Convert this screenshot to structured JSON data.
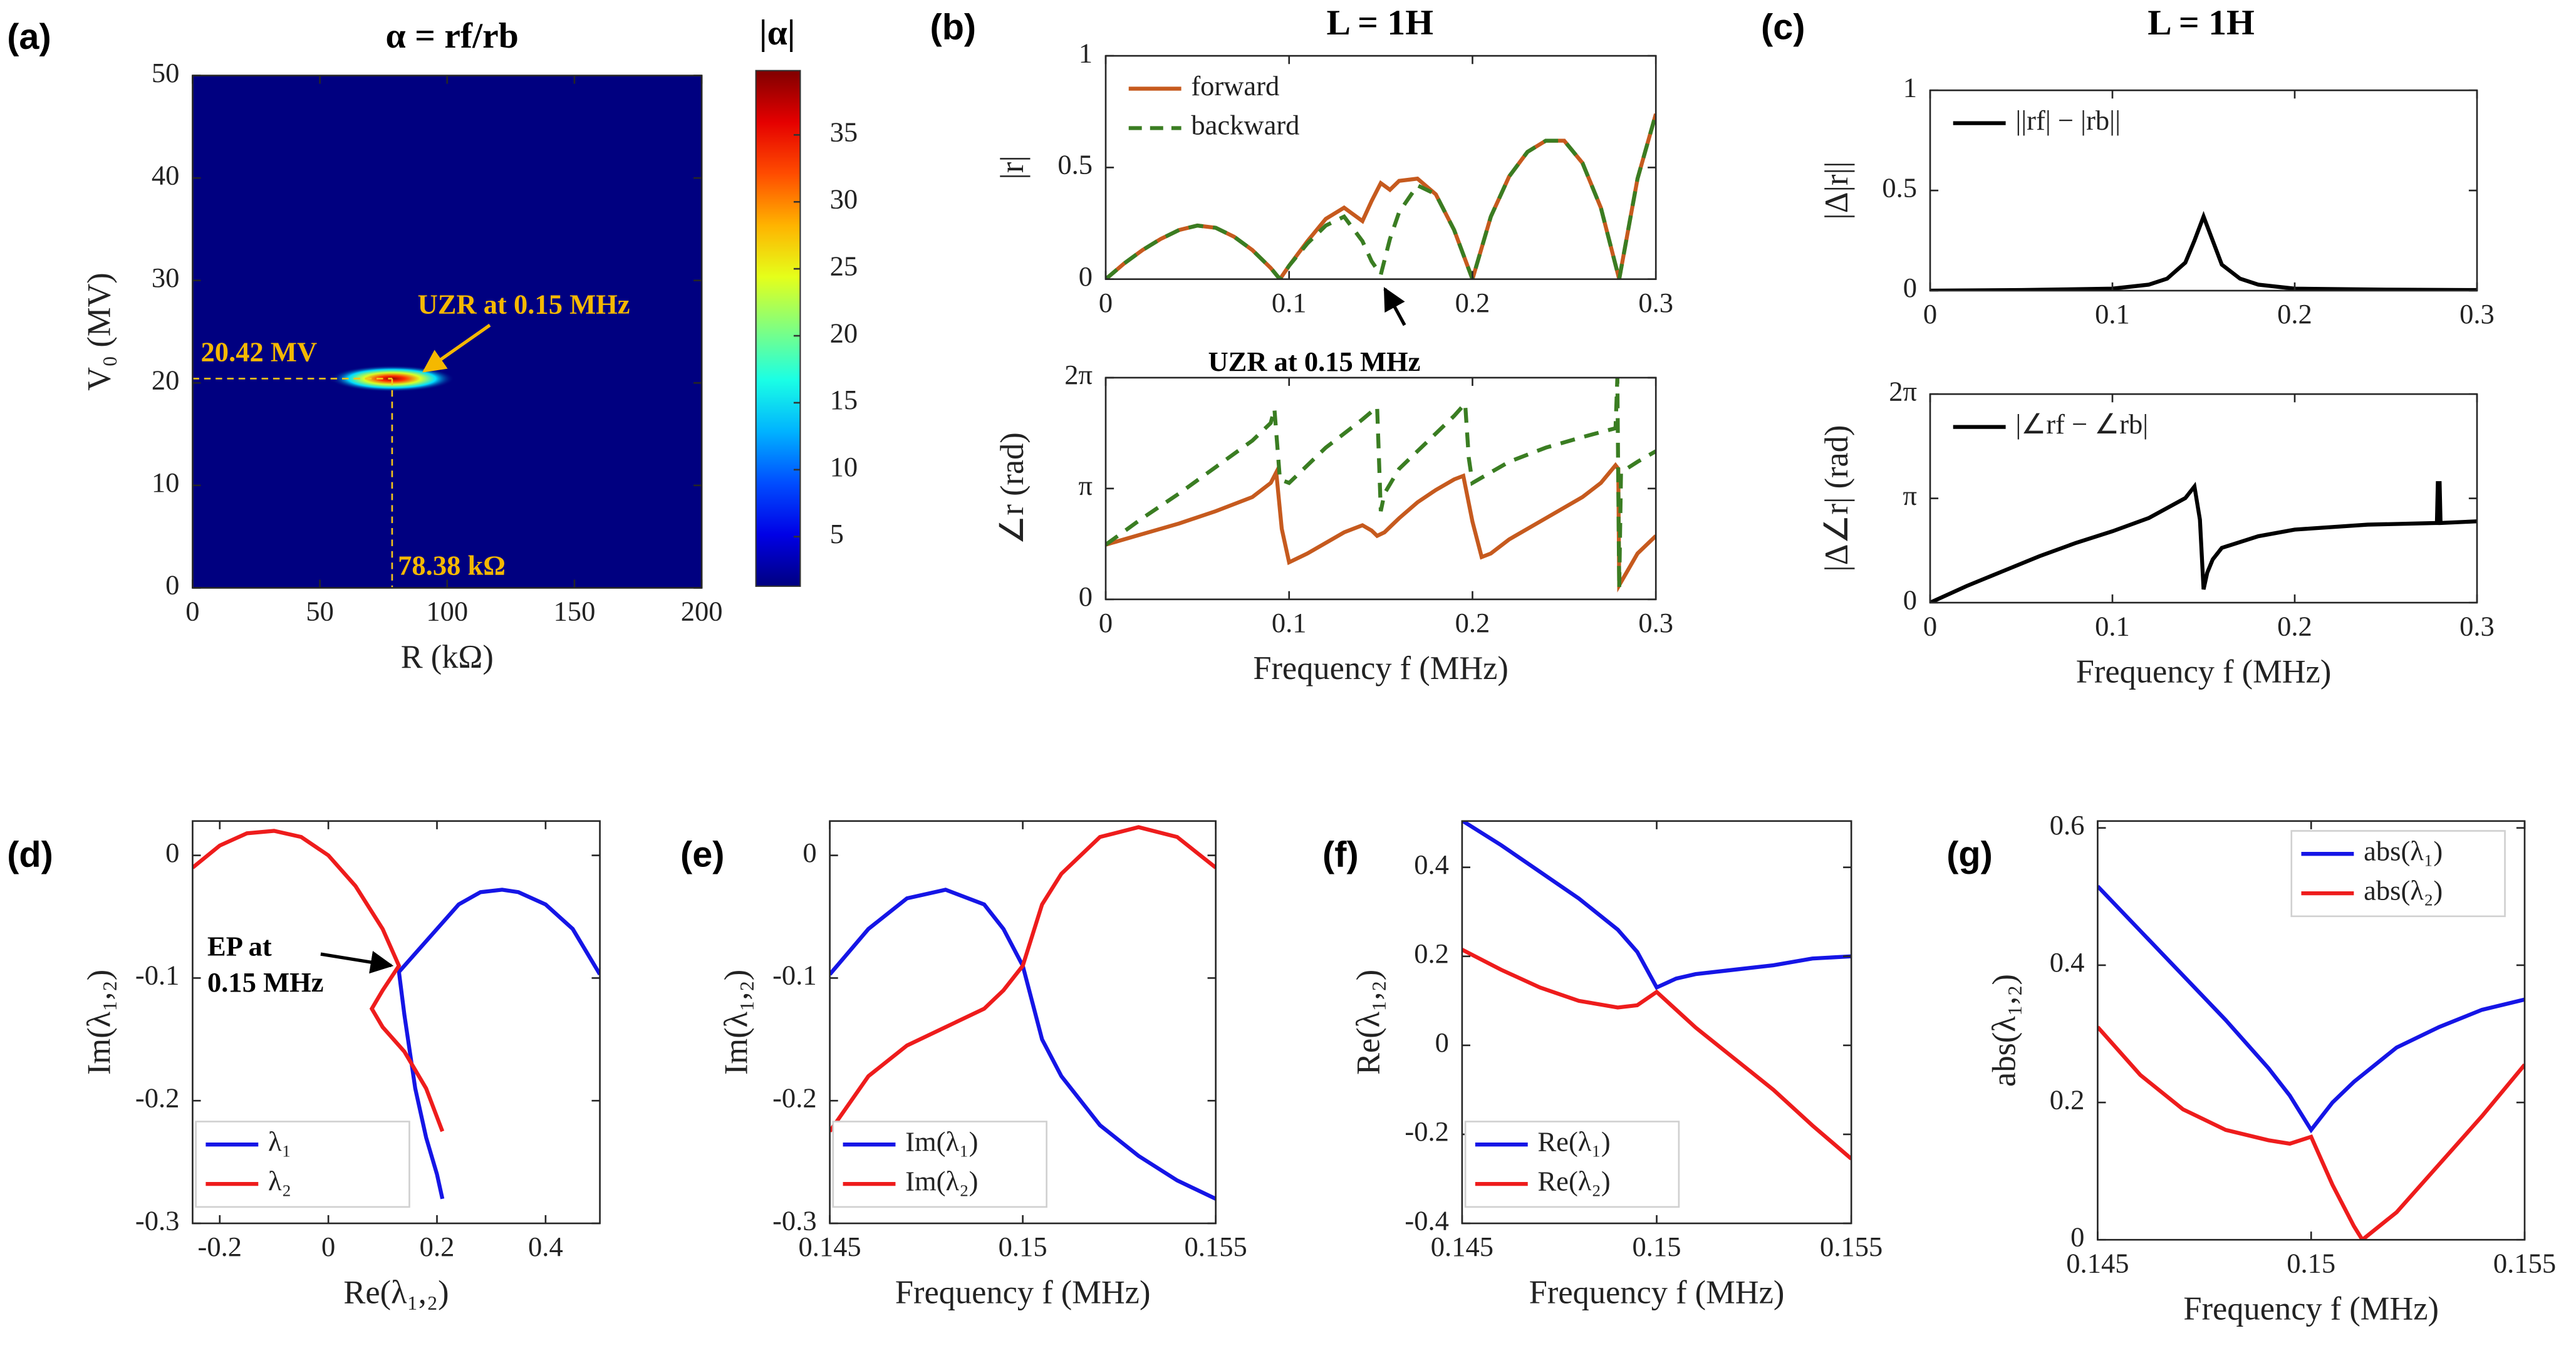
{
  "chart_data": [
    {
      "type": "heatmap",
      "panel_label": "(a)",
      "title": "α = rf/rb",
      "xlabel": "R (kΩ)",
      "ylabel": "V₀ (MV)",
      "xlim": [
        0,
        200
      ],
      "xticks": [
        0,
        50,
        100,
        150,
        200
      ],
      "ylim": [
        0,
        50
      ],
      "yticks": [
        0,
        10,
        20,
        30,
        40,
        50
      ],
      "colorbar_label": "|α|",
      "clim": [
        1.3,
        39.8
      ],
      "cticks": [
        5,
        10,
        15,
        20,
        25,
        30,
        35
      ],
      "hotspot": {
        "x": 78.38,
        "y": 20.42,
        "value": 39
      },
      "annotations": [
        "UZR at 0.15 MHz",
        "20.42 MV",
        "78.38 kΩ"
      ]
    },
    {
      "type": "line",
      "panel_label": "(b)",
      "title": "L = 1H",
      "ylabel": "|r|",
      "legend": "upper left",
      "xlim": [
        0,
        0.3
      ],
      "xticks": [
        0,
        0.1,
        0.2,
        0.3
      ],
      "ylim": [
        0,
        1
      ],
      "yticks": [
        0,
        0.5,
        1
      ],
      "annotations": [
        "UZR at 0.15 MHz"
      ],
      "series": [
        {
          "name": "forward",
          "color": "#c65a1e",
          "dash": false,
          "x": [
            0,
            0.01,
            0.02,
            0.03,
            0.04,
            0.05,
            0.06,
            0.07,
            0.08,
            0.09,
            0.095,
            0.1,
            0.11,
            0.12,
            0.13,
            0.14,
            0.145,
            0.15,
            0.155,
            0.16,
            0.17,
            0.18,
            0.19,
            0.2,
            0.21,
            0.22,
            0.23,
            0.24,
            0.25,
            0.26,
            0.27,
            0.28,
            0.29,
            0.3
          ],
          "values": [
            0,
            0.07,
            0.13,
            0.18,
            0.22,
            0.24,
            0.23,
            0.19,
            0.13,
            0.05,
            0,
            0.06,
            0.17,
            0.27,
            0.32,
            0.26,
            0.35,
            0.43,
            0.4,
            0.44,
            0.45,
            0.38,
            0.22,
            0,
            0.28,
            0.46,
            0.57,
            0.62,
            0.62,
            0.52,
            0.32,
            0,
            0.45,
            0.74
          ]
        },
        {
          "name": "backward",
          "color": "#3a7d22",
          "dash": true,
          "x": [
            0,
            0.01,
            0.02,
            0.03,
            0.04,
            0.05,
            0.06,
            0.07,
            0.08,
            0.09,
            0.095,
            0.1,
            0.11,
            0.12,
            0.13,
            0.14,
            0.145,
            0.15,
            0.155,
            0.16,
            0.17,
            0.18,
            0.19,
            0.2,
            0.21,
            0.22,
            0.23,
            0.24,
            0.25,
            0.26,
            0.27,
            0.28,
            0.29,
            0.3
          ],
          "values": [
            0,
            0.07,
            0.13,
            0.18,
            0.22,
            0.24,
            0.23,
            0.19,
            0.13,
            0.05,
            0,
            0.06,
            0.16,
            0.24,
            0.28,
            0.17,
            0.08,
            0.02,
            0.18,
            0.3,
            0.42,
            0.38,
            0.22,
            0,
            0.28,
            0.46,
            0.57,
            0.62,
            0.62,
            0.52,
            0.32,
            0,
            0.45,
            0.74
          ]
        }
      ]
    },
    {
      "type": "line",
      "ylabel": "∠r (rad)",
      "xlabel": "Frequency f (MHz)",
      "xlim": [
        0,
        0.3
      ],
      "xticks": [
        0,
        0.1,
        0.2,
        0.3
      ],
      "ylim": [
        0,
        6.28319
      ],
      "yticks": [
        0,
        {
          "value": 3.14159,
          "label": "π"
        },
        {
          "value": 6.28319,
          "label": "2π"
        }
      ],
      "series": [
        {
          "color": "#c65a1e",
          "dash": false,
          "x": [
            0,
            0.02,
            0.04,
            0.06,
            0.08,
            0.09,
            0.093,
            0.096,
            0.1,
            0.11,
            0.12,
            0.13,
            0.14,
            0.145,
            0.148,
            0.152,
            0.156,
            0.16,
            0.17,
            0.18,
            0.19,
            0.195,
            0.2,
            0.205,
            0.21,
            0.22,
            0.24,
            0.26,
            0.27,
            0.278,
            0.2795,
            0.28,
            0.29,
            0.3
          ],
          "values": [
            1.55,
            1.85,
            2.15,
            2.5,
            2.9,
            3.3,
            3.6,
            2.0,
            1.05,
            1.3,
            1.6,
            1.9,
            2.1,
            1.95,
            1.8,
            1.9,
            2.1,
            2.3,
            2.75,
            3.1,
            3.4,
            3.5,
            2.2,
            1.2,
            1.3,
            1.7,
            2.3,
            2.9,
            3.3,
            3.8,
            3.7,
            0.4,
            1.3,
            1.8
          ]
        },
        {
          "color": "#3a7d22",
          "dash": true,
          "x": [
            0,
            0.02,
            0.04,
            0.06,
            0.08,
            0.09,
            0.092,
            0.095,
            0.1,
            0.11,
            0.12,
            0.13,
            0.14,
            0.148,
            0.149,
            0.15,
            0.152,
            0.16,
            0.17,
            0.18,
            0.19,
            0.196,
            0.198,
            0.2,
            0.21,
            0.22,
            0.24,
            0.26,
            0.278,
            0.279,
            0.28,
            0.281,
            0.29,
            0.3
          ],
          "values": [
            1.55,
            2.3,
            3.0,
            3.75,
            4.5,
            5.0,
            5.4,
            3.4,
            3.3,
            3.8,
            4.3,
            4.7,
            5.1,
            5.45,
            4.0,
            2.5,
            3.0,
            3.7,
            4.2,
            4.7,
            5.2,
            5.55,
            4.0,
            3.3,
            3.6,
            3.9,
            4.3,
            4.6,
            4.85,
            6.28,
            0.3,
            3.6,
            3.9,
            4.2
          ]
        }
      ]
    },
    {
      "type": "line",
      "panel_label": "(c)",
      "title": "L = 1H",
      "ylabel": "|Δ|r||",
      "legend": "upper left",
      "xlim": [
        0,
        0.3
      ],
      "xticks": [
        0,
        0.1,
        0.2,
        0.3
      ],
      "ylim": [
        0,
        1
      ],
      "yticks": [
        0,
        0.5,
        1
      ],
      "series": [
        {
          "name": "||rf| − |rb||",
          "color": "#000000",
          "dash": false,
          "x": [
            0,
            0.05,
            0.1,
            0.12,
            0.13,
            0.14,
            0.145,
            0.15,
            0.155,
            0.16,
            0.17,
            0.18,
            0.2,
            0.25,
            0.3
          ],
          "values": [
            0,
            0.003,
            0.01,
            0.03,
            0.06,
            0.14,
            0.25,
            0.37,
            0.25,
            0.13,
            0.06,
            0.03,
            0.01,
            0.005,
            0.003
          ]
        }
      ]
    },
    {
      "type": "line",
      "ylabel": "|Δ∠r| (rad)",
      "xlabel": "Frequency f (MHz)",
      "legend": "upper left",
      "xlim": [
        0,
        0.3
      ],
      "xticks": [
        0,
        0.1,
        0.2,
        0.3
      ],
      "ylim": [
        0,
        6.28319
      ],
      "yticks": [
        0,
        {
          "value": 3.14159,
          "label": "π"
        },
        {
          "value": 6.28319,
          "label": "2π"
        }
      ],
      "series": [
        {
          "name": "|∠rf − ∠rb|",
          "color": "#000000",
          "dash": false,
          "x": [
            0,
            0.02,
            0.04,
            0.06,
            0.08,
            0.1,
            0.12,
            0.14,
            0.145,
            0.148,
            0.15,
            0.152,
            0.155,
            0.16,
            0.18,
            0.2,
            0.24,
            0.278,
            0.2785,
            0.2795,
            0.28,
            0.3
          ],
          "values": [
            0,
            0.5,
            0.95,
            1.4,
            1.8,
            2.15,
            2.55,
            3.15,
            3.5,
            2.5,
            0.4,
            0.9,
            1.3,
            1.65,
            2.0,
            2.2,
            2.35,
            2.4,
            3.6,
            3.6,
            2.4,
            2.45
          ]
        }
      ]
    },
    {
      "type": "line",
      "panel_label": "(d)",
      "xlabel": "Re(λ₁,₂)",
      "ylabel": "Im(λ₁,₂)",
      "legend": "lower left",
      "xlim": [
        -0.25,
        0.5
      ],
      "xticks": [
        -0.2,
        0,
        0.2,
        0.4
      ],
      "ylim": [
        -0.3,
        0.028
      ],
      "yticks": [
        -0.3,
        -0.2,
        -0.1,
        0
      ],
      "annotations": [
        "EP at",
        "0.15 MHz"
      ],
      "series": [
        {
          "name": "λ₁",
          "color": "#1515e6",
          "dash": false,
          "x": [
            0.5,
            0.45,
            0.4,
            0.35,
            0.32,
            0.28,
            0.24,
            0.2,
            0.16,
            0.13,
            0.14,
            0.15,
            0.16,
            0.18,
            0.2,
            0.21
          ],
          "values": [
            -0.097,
            -0.06,
            -0.04,
            -0.03,
            -0.028,
            -0.03,
            -0.04,
            -0.06,
            -0.08,
            -0.095,
            -0.13,
            -0.16,
            -0.19,
            -0.23,
            -0.26,
            -0.28
          ]
        },
        {
          "name": "λ₂",
          "color": "#ee1c1c",
          "dash": false,
          "x": [
            -0.25,
            -0.2,
            -0.15,
            -0.1,
            -0.05,
            0,
            0.05,
            0.1,
            0.13,
            0.1,
            0.08,
            0.1,
            0.14,
            0.18,
            0.21
          ],
          "values": [
            -0.01,
            0.008,
            0.018,
            0.02,
            0.015,
            0,
            -0.025,
            -0.06,
            -0.09,
            -0.11,
            -0.125,
            -0.14,
            -0.16,
            -0.19,
            -0.225
          ]
        }
      ]
    },
    {
      "type": "line",
      "panel_label": "(e)",
      "xlabel": "Frequency f (MHz)",
      "ylabel": "Im(λ₁,₂)",
      "legend": "lower left",
      "xlim": [
        0.145,
        0.155
      ],
      "xticks": [
        0.145,
        0.15,
        0.155
      ],
      "ylim": [
        -0.3,
        0.028
      ],
      "yticks": [
        -0.3,
        -0.2,
        -0.1,
        0
      ],
      "series": [
        {
          "name": "Im(λ₁)",
          "color": "#1515e6",
          "dash": false,
          "x": [
            0.145,
            0.146,
            0.147,
            0.148,
            0.149,
            0.1495,
            0.15,
            0.1505,
            0.151,
            0.152,
            0.153,
            0.154,
            0.155
          ],
          "values": [
            -0.097,
            -0.06,
            -0.035,
            -0.028,
            -0.04,
            -0.06,
            -0.09,
            -0.15,
            -0.18,
            -0.22,
            -0.245,
            -0.265,
            -0.28
          ]
        },
        {
          "name": "Im(λ₂)",
          "color": "#ee1c1c",
          "dash": false,
          "x": [
            0.145,
            0.146,
            0.147,
            0.148,
            0.149,
            0.1495,
            0.15,
            0.1505,
            0.151,
            0.152,
            0.153,
            0.154,
            0.155
          ],
          "values": [
            -0.225,
            -0.18,
            -0.155,
            -0.14,
            -0.125,
            -0.11,
            -0.09,
            -0.04,
            -0.015,
            0.015,
            0.023,
            0.015,
            -0.01
          ]
        }
      ]
    },
    {
      "type": "line",
      "panel_label": "(f)",
      "xlabel": "Frequency f (MHz)",
      "ylabel": "Re(λ₁,₂)",
      "legend": "lower left",
      "xlim": [
        0.145,
        0.155
      ],
      "xticks": [
        0.145,
        0.15,
        0.155
      ],
      "ylim": [
        -0.4,
        0.504
      ],
      "yticks": [
        -0.4,
        -0.2,
        0,
        0.2,
        0.4
      ],
      "series": [
        {
          "name": "Re(λ₁)",
          "color": "#1515e6",
          "dash": false,
          "x": [
            0.145,
            0.146,
            0.147,
            0.148,
            0.149,
            0.1495,
            0.15,
            0.1505,
            0.151,
            0.152,
            0.153,
            0.154,
            0.155
          ],
          "values": [
            0.505,
            0.45,
            0.39,
            0.33,
            0.26,
            0.21,
            0.13,
            0.15,
            0.16,
            0.17,
            0.18,
            0.195,
            0.2
          ]
        },
        {
          "name": "Re(λ₂)",
          "color": "#ee1c1c",
          "dash": false,
          "x": [
            0.145,
            0.146,
            0.147,
            0.148,
            0.149,
            0.1495,
            0.15,
            0.1505,
            0.151,
            0.152,
            0.153,
            0.154,
            0.155
          ],
          "values": [
            0.215,
            0.17,
            0.13,
            0.1,
            0.085,
            0.09,
            0.12,
            0.08,
            0.04,
            -0.03,
            -0.1,
            -0.18,
            -0.255
          ]
        }
      ]
    },
    {
      "type": "line",
      "panel_label": "(g)",
      "xlabel": "Frequency f (MHz)",
      "ylabel": "abs(λ₁,₂)",
      "legend": "upper right",
      "xlim": [
        0.145,
        0.155
      ],
      "xticks": [
        0.145,
        0.15,
        0.155
      ],
      "ylim": [
        0,
        0.61
      ],
      "yticks": [
        0,
        0.2,
        0.4,
        0.6
      ],
      "series": [
        {
          "name": "abs(λ₁)",
          "color": "#1515e6",
          "dash": false,
          "x": [
            0.145,
            0.146,
            0.147,
            0.148,
            0.149,
            0.1495,
            0.15,
            0.1505,
            0.151,
            0.152,
            0.153,
            0.154,
            0.155
          ],
          "values": [
            0.515,
            0.45,
            0.385,
            0.32,
            0.25,
            0.21,
            0.16,
            0.2,
            0.23,
            0.28,
            0.31,
            0.335,
            0.35
          ]
        },
        {
          "name": "abs(λ₂)",
          "color": "#ee1c1c",
          "dash": false,
          "x": [
            0.145,
            0.146,
            0.147,
            0.148,
            0.149,
            0.1495,
            0.15,
            0.1505,
            0.151,
            0.1512,
            0.152,
            0.153,
            0.154,
            0.155
          ],
          "values": [
            0.31,
            0.24,
            0.19,
            0.16,
            0.145,
            0.14,
            0.15,
            0.08,
            0.02,
            0,
            0.04,
            0.11,
            0.18,
            0.255
          ]
        }
      ]
    }
  ]
}
